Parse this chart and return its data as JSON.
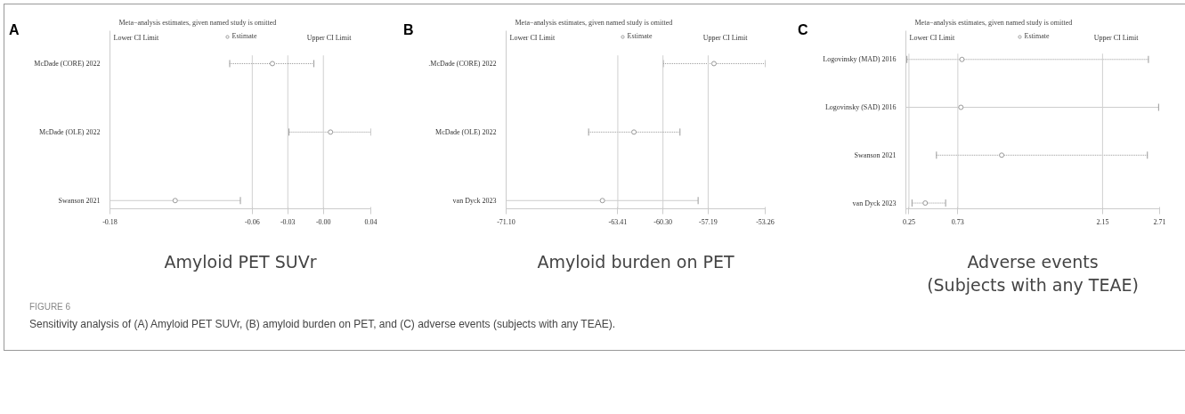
{
  "chart_data": [
    {
      "type": "scatter",
      "orientation": "horizontal",
      "title": "Meta−analysis estimates, given named study is omitted",
      "xlabel": "Amyloid PET SUVr",
      "annotations": [
        "A",
        "Lower CI Limit",
        "Upper CI Limit",
        "FIGURE 6",
        "Sensitivity analysis of (A) Amyloid PET SUVr, (B) amyloid burden on PET, and (C) adverse events (subjects with any TEAE)."
      ],
      "categories": [
        "McDade (CORE) 2022",
        "McDade (OLE) 2022",
        "Swanson 2021"
      ],
      "series": [
        {
          "name": "Estimate",
          "color": "#999999",
          "marker": "circle",
          "values": [
            -0.043,
            0.006,
            -0.125
          ],
          "errors": [
            [
              -0.079,
              -0.008
            ],
            [
              -0.029,
              0.04
            ],
            [
              -0.18,
              -0.07
            ]
          ]
        }
      ],
      "xlim": [
        -0.18,
        0.04
      ],
      "xticks": [
        -0.18,
        -0.06,
        -0.03,
        {
          "value": 0,
          "label": "-0.00"
        },
        0.04
      ],
      "ref_lines": [
        {
          "axis": "x",
          "value": -0.06,
          "color": "#d0d0d0"
        },
        {
          "axis": "x",
          "value": -0.03,
          "color": "#d0d0d0"
        },
        {
          "axis": "x",
          "value": 0,
          "color": "#d0d0d0"
        }
      ],
      "legend": "top",
      "grid": false
    },
    {
      "type": "scatter",
      "orientation": "horizontal",
      "title": "Meta−analysis estimates, given named study is omitted",
      "xlabel": "Amyloid burden on PET",
      "annotations": [
        "B",
        "Lower CI Limit",
        "Upper CI Limit"
      ],
      "categories": [
        ".McDade (CORE) 2022",
        "McDade (OLE) 2022",
        "van Dyck 2023"
      ],
      "series": [
        {
          "name": "Estimate",
          "color": "#999999",
          "marker": "circle",
          "values": [
            -56.79,
            -62.3,
            -64.47
          ],
          "errors": [
            [
              -60.28,
              -53.26
            ],
            [
              -65.42,
              -59.13
            ],
            [
              -71.1,
              -57.88
            ]
          ]
        }
      ],
      "xlim": [
        -71.1,
        -53.26
      ],
      "xticks": [
        {
          "value": -71.1,
          "label": "-71.10"
        },
        {
          "value": -63.41,
          "label": "-63.41"
        },
        {
          "value": -60.3,
          "label": "-60.30"
        },
        {
          "value": -57.19,
          "label": "-57.19"
        },
        {
          "value": -53.26,
          "label": "-53.26"
        }
      ],
      "ref_lines": [
        {
          "axis": "x",
          "value": -63.41,
          "color": "#d0d0d0"
        },
        {
          "axis": "x",
          "value": -60.3,
          "color": "#d0d0d0"
        },
        {
          "axis": "x",
          "value": -57.19,
          "color": "#d0d0d0"
        }
      ],
      "legend": "top",
      "grid": false
    },
    {
      "type": "scatter",
      "orientation": "horizontal",
      "title": "Meta−analysis estimates, given named study is omitted",
      "xlabel": "Adverse events\n(Subjects with any TEAE)",
      "annotations": [
        "C",
        "Lower CI Limit",
        "Upper CI Limit"
      ],
      "categories": [
        "Logovinsky (MAD) 2016",
        "Logovinsky (SAD) 2016",
        "Swanson 2021",
        "van Dyck 2023"
      ],
      "series": [
        {
          "name": "Estimate",
          "color": "#999999",
          "marker": "circle",
          "values": [
            0.77,
            0.76,
            1.16,
            0.41
          ],
          "errors": [
            [
              0.23,
              2.6
            ],
            [
              0.22,
              2.7
            ],
            [
              0.52,
              2.59
            ],
            [
              0.28,
              0.61
            ]
          ]
        }
      ],
      "xlim": [
        0.22,
        2.71
      ],
      "xticks": [
        {
          "value": 0.22,
          "label": null
        },
        {
          "value": 0.25,
          "label": "0.25"
        },
        0.73,
        2.15,
        2.71
      ],
      "ref_lines": [
        {
          "axis": "x",
          "value": 0.25,
          "color": "#d0d0d0"
        },
        {
          "axis": "x",
          "value": 0.73,
          "color": "#d0d0d0"
        },
        {
          "axis": "x",
          "value": 2.15,
          "color": "#d0d0d0"
        }
      ],
      "legend": "top",
      "grid": false
    }
  ]
}
